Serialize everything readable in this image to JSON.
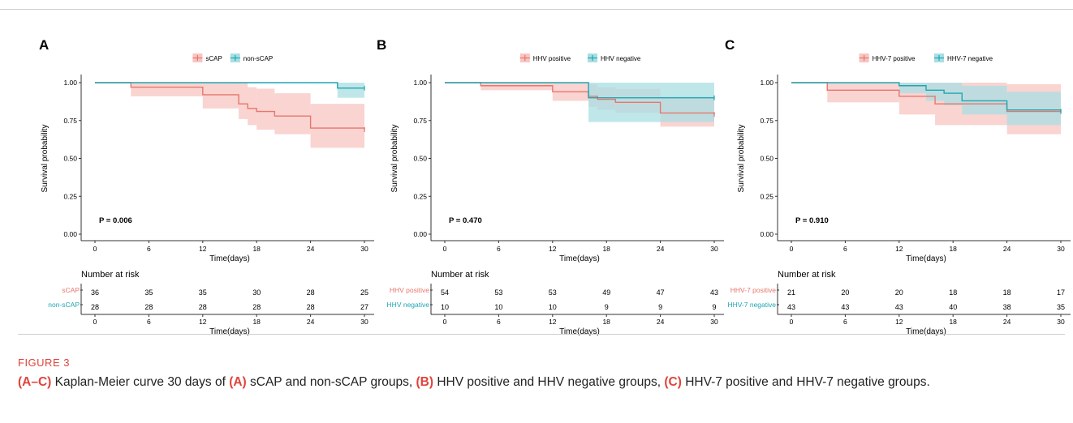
{
  "figure": {
    "label": "FIGURE 3",
    "caption_parts": [
      {
        "t": "(A–C)",
        "b": true
      },
      {
        "t": " Kaplan-Meier curve 30 days of ",
        "b": false
      },
      {
        "t": "(A)",
        "b": true
      },
      {
        "t": " sCAP and non-sCAP groups, ",
        "b": false
      },
      {
        "t": "(B)",
        "b": true
      },
      {
        "t": " HHV positive and HHV negative groups, ",
        "b": false
      },
      {
        "t": "(C)",
        "b": true
      },
      {
        "t": " HHV-7 positive and HHV-7 negative groups.",
        "b": false
      }
    ]
  },
  "colors": {
    "red": "#e8766d",
    "teal": "#1ea6b2",
    "red_fill": "#f7c5c2",
    "teal_fill": "#a9dfe3",
    "axis": "#333333"
  },
  "chart_data": [
    {
      "panel": "A",
      "type": "line",
      "step": true,
      "xlabel": "Time(days)",
      "ylabel": "Survival probability",
      "xlim": [
        0,
        30
      ],
      "ylim": [
        0,
        1
      ],
      "xticks": [
        "0",
        "6",
        "12",
        "18",
        "24",
        "30"
      ],
      "yticks": [
        "0.00",
        "0.25",
        "0.50",
        "0.75",
        "1.00"
      ],
      "pvalue": "P = 0.006",
      "series": [
        {
          "name": "sCAP",
          "color": "red",
          "x": [
            0,
            4,
            12,
            16,
            17,
            18,
            20,
            24,
            30
          ],
          "y": [
            1.0,
            0.97,
            0.92,
            0.86,
            0.83,
            0.81,
            0.78,
            0.7,
            0.69
          ],
          "ci_low": [
            1.0,
            0.91,
            0.83,
            0.76,
            0.72,
            0.69,
            0.66,
            0.57,
            0.57
          ],
          "ci_high": [
            1.0,
            1.0,
            1.0,
            1.0,
            0.97,
            0.96,
            0.93,
            0.86,
            0.85
          ]
        },
        {
          "name": "non-sCAP",
          "color": "teal",
          "x": [
            0,
            27,
            30
          ],
          "y": [
            1.0,
            0.964,
            0.964
          ],
          "ci_low": [
            1.0,
            0.9,
            0.9
          ],
          "ci_high": [
            1.0,
            1.0,
            1.0
          ]
        }
      ],
      "risk_table": {
        "title": "Number at risk",
        "rows": [
          {
            "name": "sCAP",
            "color": "red",
            "values": [
              "36",
              "35",
              "35",
              "30",
              "28",
              "25"
            ]
          },
          {
            "name": "non-sCAP",
            "color": "teal",
            "values": [
              "28",
              "28",
              "28",
              "28",
              "28",
              "27"
            ]
          }
        ],
        "xlabel": "Time(days)"
      }
    },
    {
      "panel": "B",
      "type": "line",
      "step": true,
      "xlabel": "Time(days)",
      "ylabel": "Survival probability",
      "xlim": [
        0,
        30
      ],
      "ylim": [
        0,
        1
      ],
      "xticks": [
        "0",
        "6",
        "12",
        "18",
        "24",
        "30"
      ],
      "yticks": [
        "0.00",
        "0.25",
        "0.50",
        "0.75",
        "1.00"
      ],
      "pvalue": "P = 0.470",
      "series": [
        {
          "name": "HHV positive",
          "color": "red",
          "x": [
            0,
            4,
            12,
            16,
            17,
            19,
            24,
            30
          ],
          "y": [
            1.0,
            0.98,
            0.94,
            0.91,
            0.89,
            0.87,
            0.8,
            0.79
          ],
          "ci_low": [
            1.0,
            0.95,
            0.88,
            0.84,
            0.82,
            0.8,
            0.71,
            0.7
          ],
          "ci_high": [
            1.0,
            1.0,
            1.0,
            0.99,
            0.97,
            0.96,
            0.91,
            0.9
          ]
        },
        {
          "name": "HHV negative",
          "color": "teal",
          "x": [
            0,
            16,
            30
          ],
          "y": [
            1.0,
            0.9,
            0.9
          ],
          "ci_low": [
            1.0,
            0.74,
            0.74
          ],
          "ci_high": [
            1.0,
            1.0,
            1.0
          ]
        }
      ],
      "risk_table": {
        "title": "Number at risk",
        "rows": [
          {
            "name": "HHV positive",
            "color": "red",
            "values": [
              "54",
              "53",
              "53",
              "49",
              "47",
              "43"
            ]
          },
          {
            "name": "HHV negative",
            "color": "teal",
            "values": [
              "10",
              "10",
              "10",
              "9",
              "9",
              "9"
            ]
          }
        ],
        "xlabel": "Time(days)"
      }
    },
    {
      "panel": "C",
      "type": "line",
      "step": true,
      "xlabel": "Time(days)",
      "ylabel": "Survival probability",
      "xlim": [
        0,
        30
      ],
      "ylim": [
        0,
        1
      ],
      "xticks": [
        "0",
        "6",
        "12",
        "18",
        "24",
        "30"
      ],
      "yticks": [
        "0.00",
        "0.25",
        "0.50",
        "0.75",
        "1.00"
      ],
      "pvalue": "P = 0.910",
      "series": [
        {
          "name": "HHV-7 positive",
          "color": "red",
          "x": [
            0,
            4,
            12,
            16,
            24,
            30
          ],
          "y": [
            1.0,
            0.95,
            0.91,
            0.86,
            0.81,
            0.81
          ],
          "ci_low": [
            1.0,
            0.87,
            0.79,
            0.72,
            0.66,
            0.66
          ],
          "ci_high": [
            1.0,
            1.0,
            1.0,
            1.0,
            0.99,
            0.99
          ]
        },
        {
          "name": "HHV-7 negative",
          "color": "teal",
          "x": [
            0,
            12,
            15,
            17,
            19,
            24,
            30
          ],
          "y": [
            1.0,
            0.98,
            0.95,
            0.93,
            0.88,
            0.82,
            0.81
          ],
          "ci_low": [
            1.0,
            0.93,
            0.88,
            0.85,
            0.79,
            0.72,
            0.71
          ],
          "ci_high": [
            1.0,
            1.0,
            1.0,
            1.0,
            0.98,
            0.94,
            0.93
          ]
        }
      ],
      "risk_table": {
        "title": "Number at risk",
        "rows": [
          {
            "name": "HHV-7 positive",
            "color": "red",
            "values": [
              "21",
              "20",
              "20",
              "18",
              "18",
              "17"
            ]
          },
          {
            "name": "HHV-7 negative",
            "color": "teal",
            "values": [
              "43",
              "43",
              "43",
              "40",
              "38",
              "35"
            ]
          }
        ],
        "xlabel": "Time(days)"
      }
    }
  ]
}
